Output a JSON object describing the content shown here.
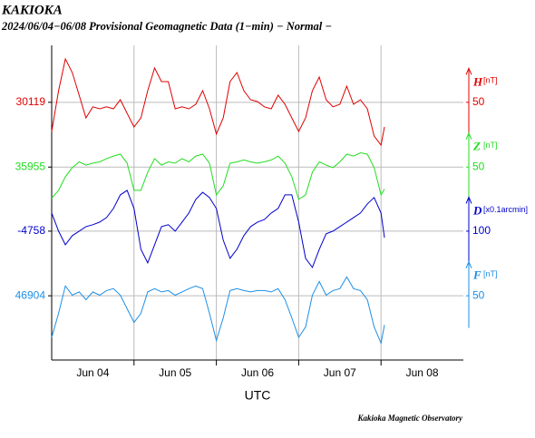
{
  "chart_data": {
    "type": "line",
    "title": "KAKIOKA",
    "subtitle": "2024/06/04−06/08  Provisional Geomagnetic Data (1−min)  − Normal −",
    "x_label": "UTC",
    "footer": "Kakioka Magnetic Observatory",
    "xlim": [
      0,
      120
    ],
    "xticks": [
      {
        "value": 12,
        "label": "Jun 04"
      },
      {
        "value": 36,
        "label": "Jun 05"
      },
      {
        "value": 60,
        "label": "Jun 06"
      },
      {
        "value": 84,
        "label": "Jun 07"
      },
      {
        "value": 108,
        "label": "Jun 08"
      }
    ],
    "xgrid": [
      24,
      48,
      72,
      96
    ],
    "grid": true,
    "x": [
      0,
      2,
      4,
      6,
      8,
      10,
      12,
      14,
      16,
      18,
      20,
      22,
      24,
      26,
      28,
      30,
      32,
      34,
      36,
      38,
      40,
      42,
      44,
      46,
      48,
      50,
      52,
      54,
      56,
      58,
      60,
      62,
      64,
      66,
      68,
      70,
      72,
      74,
      76,
      78,
      80,
      82,
      84,
      86,
      88,
      90,
      92,
      94,
      96,
      97
    ],
    "series": [
      {
        "name": "H",
        "unit": "[nT]",
        "color": "#e00000",
        "ylim": [
          29721,
          30207
        ],
        "yticks": [
          30119
        ],
        "scale_lim": [
          0,
          100
        ],
        "scale_ticks": [
          50
        ],
        "values": [
          30074,
          30137,
          30186,
          30165,
          30130,
          30095,
          30112,
          30109,
          30112,
          30109,
          30123,
          30102,
          30081,
          30095,
          30137,
          30172,
          30151,
          30151,
          30109,
          30112,
          30109,
          30116,
          30137,
          30109,
          30070,
          30095,
          30151,
          30165,
          30137,
          30123,
          30120,
          30112,
          30109,
          30130,
          30116,
          30095,
          30074,
          30095,
          30137,
          30158,
          30123,
          30112,
          30116,
          30144,
          30116,
          30123,
          30109,
          30067,
          30053,
          30081
        ]
      },
      {
        "name": "Z",
        "unit": "[nT]",
        "color": "#22dd22",
        "ylim": [
          35657,
          36143
        ],
        "yticks": [
          35955
        ],
        "scale_lim": [
          0,
          100
        ],
        "scale_ticks": [
          50
        ],
        "values": [
          35907,
          35919,
          35940,
          35954,
          35963,
          35958,
          35961,
          35963,
          35968,
          35972,
          35975,
          35961,
          35919,
          35919,
          35947,
          35968,
          35958,
          35963,
          35961,
          35968,
          35963,
          35972,
          35975,
          35961,
          35912,
          35926,
          35961,
          35963,
          35966,
          35963,
          35961,
          35963,
          35966,
          35972,
          35961,
          35940,
          35905,
          35912,
          35947,
          35963,
          35958,
          35954,
          35963,
          35975,
          35972,
          35977,
          35975,
          35954,
          35912,
          35921
        ]
      },
      {
        "name": "D",
        "unit": "[x0.1arcmin]",
        "color": "#0000cc",
        "ylim": [
          -5156,
          -4184
        ],
        "yticks": [
          -4758
        ],
        "scale_lim": [
          0,
          200
        ],
        "scale_ticks": [
          100
        ],
        "values": [
          -4702,
          -4758,
          -4800,
          -4772,
          -4758,
          -4744,
          -4738,
          -4730,
          -4716,
          -4688,
          -4646,
          -4632,
          -4688,
          -4814,
          -4856,
          -4800,
          -4744,
          -4738,
          -4758,
          -4730,
          -4702,
          -4660,
          -4638,
          -4654,
          -4688,
          -4786,
          -4842,
          -4814,
          -4772,
          -4744,
          -4730,
          -4722,
          -4702,
          -4688,
          -4646,
          -4646,
          -4730,
          -4842,
          -4870,
          -4814,
          -4766,
          -4758,
          -4744,
          -4730,
          -4716,
          -4702,
          -4674,
          -4654,
          -4702,
          -4778
        ]
      },
      {
        "name": "F",
        "unit": "[nT]",
        "color": "#1e8fe6",
        "ylim": [
          46805,
          47290
        ],
        "yticks": [
          46904
        ],
        "scale_lim": [
          0,
          100
        ],
        "scale_ticks": [
          50
        ],
        "values": [
          46840,
          46877,
          46919,
          46905,
          46910,
          46898,
          46910,
          46905,
          46912,
          46915,
          46905,
          46884,
          46863,
          46877,
          46910,
          46915,
          46910,
          46912,
          46905,
          46910,
          46915,
          46919,
          46915,
          46877,
          46835,
          46870,
          46912,
          46915,
          46912,
          46910,
          46912,
          46912,
          46910,
          46915,
          46898,
          46870,
          46840,
          46856,
          46905,
          46926,
          46905,
          46912,
          46915,
          46933,
          46915,
          46912,
          46898,
          46856,
          46831,
          46859
        ]
      }
    ]
  }
}
